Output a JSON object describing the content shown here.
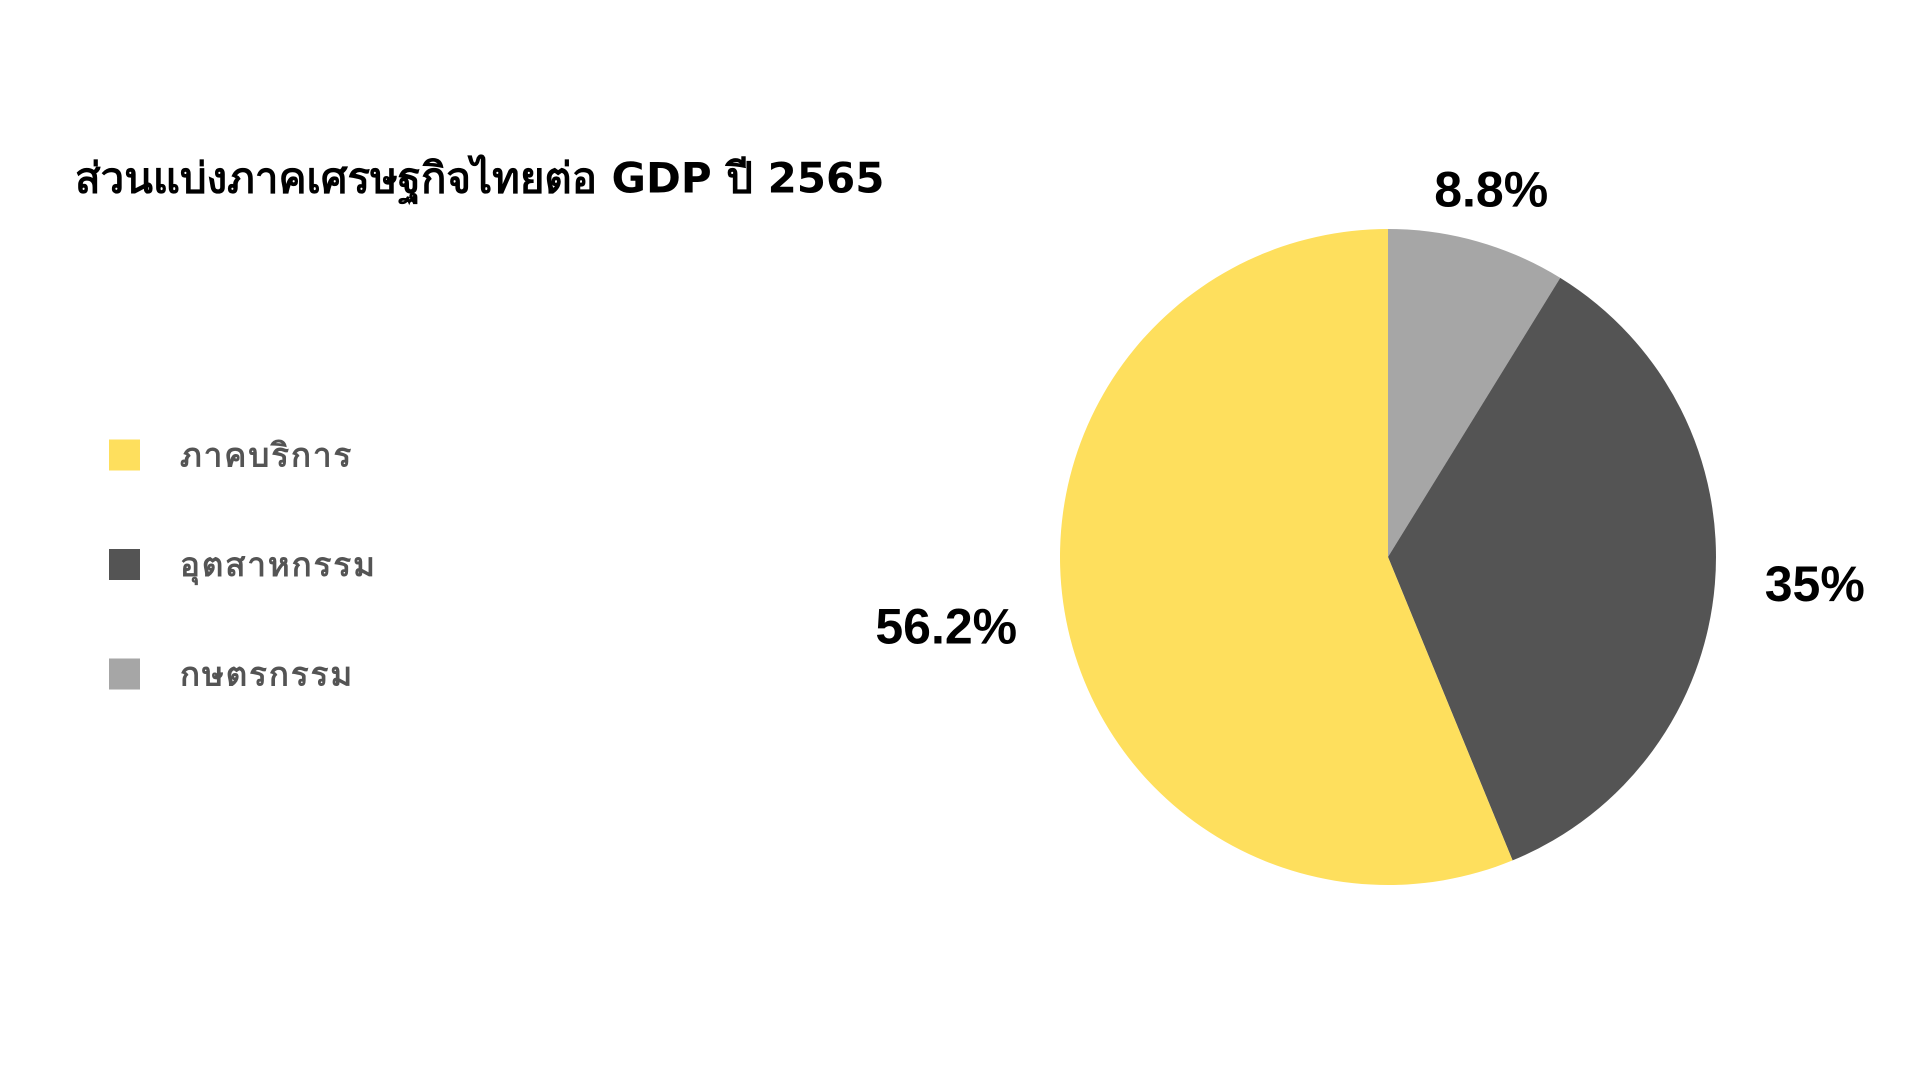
{
  "chart_data": {
    "type": "pie",
    "title": "ส่วนแบ่งภาคเศรษฐกิจไทยต่อ GDP ปี 2565",
    "categories": [
      "กษตรกรรม",
      "อุตสาหกรรม",
      "ภาคบริการ"
    ],
    "values": [
      8.8,
      35,
      56.2
    ],
    "value_labels": [
      "8.8%",
      "35%",
      "56.2%"
    ],
    "colors": [
      "#a6a6a6",
      "#545454",
      "#fedf5d"
    ],
    "legend_order": [
      2,
      1,
      0
    ]
  }
}
